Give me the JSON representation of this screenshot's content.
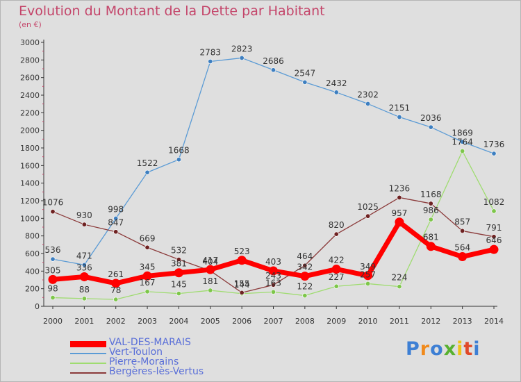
{
  "title": "Evolution du Montant de la Dette par Habitant",
  "subtitle": "(en €)",
  "logo_text": "Proxiti",
  "chart_data": {
    "type": "line",
    "x": [
      2000,
      2001,
      2002,
      2003,
      2004,
      2005,
      2006,
      2007,
      2008,
      2009,
      2010,
      2011,
      2012,
      2013,
      2014
    ],
    "ylim": [
      0,
      3000
    ],
    "yticks": [
      0,
      200,
      400,
      600,
      800,
      1000,
      1200,
      1400,
      1600,
      1800,
      2000,
      2200,
      2400,
      2600,
      2800,
      3000
    ],
    "grid": false,
    "legend_placement": "bottom-left",
    "series": [
      {
        "name": "Vert-Toulon",
        "color": "#5b9bd5",
        "marker": "#3e7fc0",
        "values": [
          536,
          471,
          998,
          1522,
          1668,
          2783,
          2823,
          2686,
          2547,
          2432,
          2302,
          2151,
          2036,
          1869,
          1736
        ]
      },
      {
        "name": "Pierre-Morains",
        "color": "#9fdc70",
        "marker": "#7dc64a",
        "values": [
          98,
          88,
          78,
          167,
          145,
          181,
          144,
          163,
          122,
          227,
          257,
          224,
          986,
          1764,
          1082
        ]
      },
      {
        "name": "Bergères-lès-Vertus",
        "color": "#8b3a3a",
        "marker": "#6e2222",
        "values": [
          1076,
          930,
          847,
          669,
          532,
          404,
          155,
          243,
          464,
          820,
          1025,
          1236,
          1168,
          857,
          791
        ]
      },
      {
        "name": "VAL-DES-MARAIS",
        "color": "#ff0000",
        "marker": "#ff0000",
        "values": [
          305,
          336,
          261,
          345,
          381,
          417,
          523,
          403,
          342,
          422,
          349,
          957,
          681,
          564,
          646
        ]
      }
    ]
  }
}
